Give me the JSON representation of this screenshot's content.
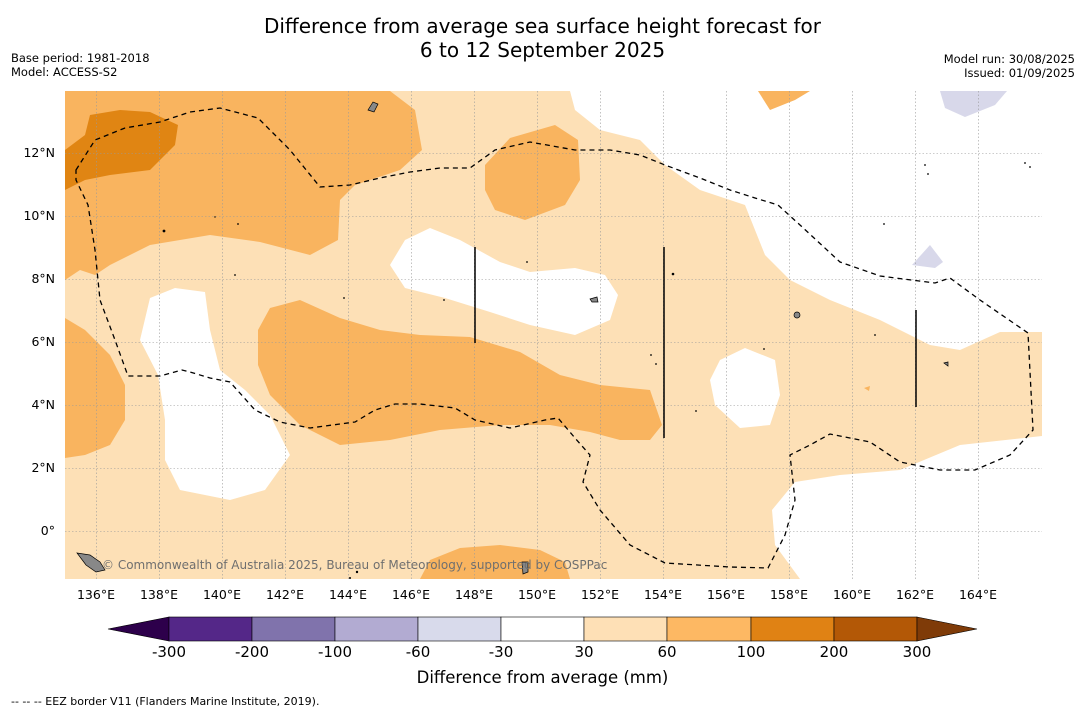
{
  "title": {
    "line1": "Difference from average sea surface height forecast for",
    "line2": "6 to 12 September 2025"
  },
  "info_left": {
    "base_period": "Base period: 1981-2018",
    "model": "Model: ACCESS-S2"
  },
  "info_right": {
    "model_run": "Model run: 30/08/2025",
    "issued": "Issued: 01/09/2025"
  },
  "map": {
    "lon_labels": [
      "136°E",
      "138°E",
      "140°E",
      "142°E",
      "144°E",
      "146°E",
      "148°E",
      "150°E",
      "152°E",
      "154°E",
      "156°E",
      "158°E",
      "160°E",
      "162°E",
      "164°E"
    ],
    "lat_labels": [
      "12°N",
      "10°N",
      "8°N",
      "6°N",
      "4°N",
      "2°N",
      "0°"
    ],
    "credit": "© Commonwealth of Australia 2025, Bureau of Meteorology, supported by COSPPac",
    "colors": {
      "band_30_60": "#fde0b6",
      "band_60_100": "#f9b45f",
      "band_100_200": "#e08513",
      "band_neg_30_60": "#d8d8ea",
      "land": "#888888",
      "eez": "#000000"
    }
  },
  "colorbar": {
    "title": "Difference from average (mm)",
    "ticks": [
      "-300",
      "-200",
      "-100",
      "-60",
      "-30",
      "30",
      "60",
      "100",
      "200",
      "300"
    ],
    "colors": [
      "#2d004b",
      "#542788",
      "#8073ac",
      "#b2abd2",
      "#d8daeb",
      "#ffffff",
      "#fee0b6",
      "#fdb863",
      "#e08214",
      "#b35806",
      "#7f3b08"
    ]
  },
  "footnote": "-- -- -- EEZ border V11 (Flanders Marine Institute, 2019)."
}
